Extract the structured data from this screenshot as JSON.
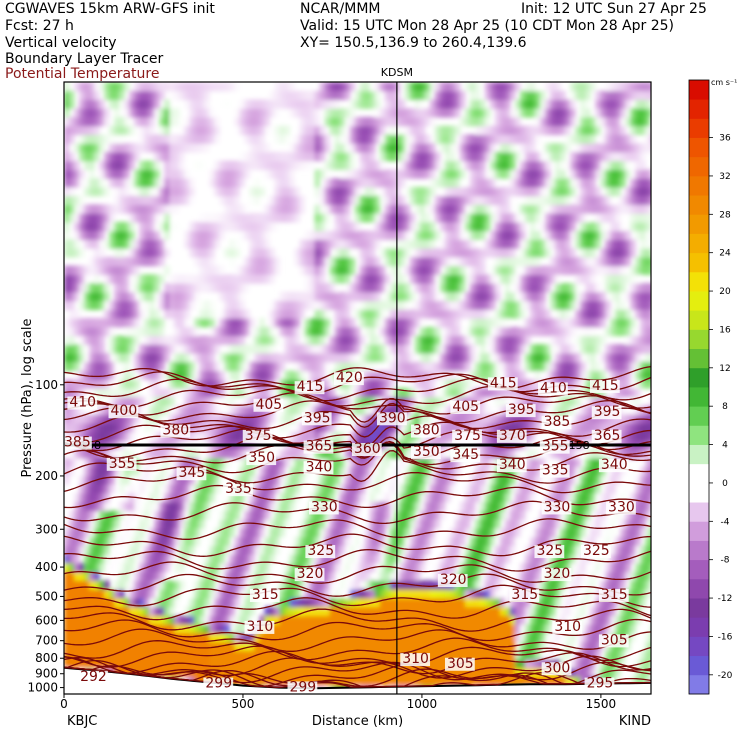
{
  "header": {
    "model": "CGWAVES 15km ARW-GFS init",
    "org": "NCAR/MMM",
    "init": "Init: 12 UTC Sun 27 Apr 25",
    "fcst": "Fcst:   27 h",
    "valid": "Valid: 15 UTC Mon 28 Apr 25 (10 CDT Mon 28 Apr 25)",
    "xy": "XY= 150.5,136.9 to 260.4,139.6",
    "fields": [
      "Vertical velocity",
      "Boundary Layer Tracer",
      "Potential Temperature"
    ]
  },
  "colors": {
    "theta": "#7a0a0a",
    "frame": "#000000"
  },
  "chart_data": {
    "type": "heatmap",
    "xlabel": "Distance (km)",
    "ylabel": "Pressure (hPa), log scale",
    "xlim": [
      0,
      1640
    ],
    "ylim": [
      1050,
      10
    ],
    "y_scale": "log",
    "x_ticks": [
      "0",
      "500",
      "1000",
      "1500"
    ],
    "y_ticks": [
      100,
      200,
      300,
      400,
      500,
      600,
      700,
      800,
      900,
      1000
    ],
    "station_left": "KBJC",
    "station_right": "KIND",
    "station_mid": "KDSM",
    "station_mid_x": 930,
    "tropopause_p": 158,
    "tropopause_labels": [
      "158",
      "158"
    ],
    "colorbar": {
      "units": "cm s⁻¹",
      "min": -22,
      "max": 42,
      "step": 2,
      "tick_labels": [
        "36",
        "32",
        "28",
        "24",
        "20",
        "16",
        "12",
        "8",
        "4",
        "0",
        "-4",
        "-8",
        "-12",
        "-16",
        "-20"
      ]
    },
    "theta_labels": [
      {
        "v": "410",
        "x": 15,
        "p": 118
      },
      {
        "v": "400",
        "x": 130,
        "p": 126
      },
      {
        "v": "380",
        "x": 275,
        "p": 146
      },
      {
        "v": "375",
        "x": 505,
        "p": 152
      },
      {
        "v": "405",
        "x": 535,
        "p": 120
      },
      {
        "v": "415",
        "x": 650,
        "p": 105
      },
      {
        "v": "420",
        "x": 760,
        "p": 98
      },
      {
        "v": "395",
        "x": 670,
        "p": 133
      },
      {
        "v": "390",
        "x": 880,
        "p": 133
      },
      {
        "v": "385",
        "x": 0,
        "p": 160
      },
      {
        "v": "355",
        "x": 125,
        "p": 188
      },
      {
        "v": "345",
        "x": 320,
        "p": 202
      },
      {
        "v": "350",
        "x": 515,
        "p": 180
      },
      {
        "v": "340",
        "x": 675,
        "p": 193
      },
      {
        "v": "365",
        "x": 675,
        "p": 165
      },
      {
        "v": "360",
        "x": 810,
        "p": 168
      },
      {
        "v": "335",
        "x": 450,
        "p": 228
      },
      {
        "v": "330",
        "x": 690,
        "p": 262
      },
      {
        "v": "325",
        "x": 680,
        "p": 365
      },
      {
        "v": "320",
        "x": 650,
        "p": 435
      },
      {
        "v": "315",
        "x": 525,
        "p": 510
      },
      {
        "v": "310",
        "x": 510,
        "p": 650
      },
      {
        "v": "292",
        "x": 45,
        "p": 950
      },
      {
        "v": "299",
        "x": 395,
        "p": 1000
      },
      {
        "v": "299",
        "x": 630,
        "p": 1030
      },
      {
        "v": "380",
        "x": 975,
        "p": 146
      },
      {
        "v": "375",
        "x": 1090,
        "p": 152
      },
      {
        "v": "350",
        "x": 975,
        "p": 172
      },
      {
        "v": "345",
        "x": 1085,
        "p": 176
      },
      {
        "v": "340",
        "x": 1215,
        "p": 190
      },
      {
        "v": "335",
        "x": 1335,
        "p": 198
      },
      {
        "v": "340",
        "x": 1500,
        "p": 190
      },
      {
        "v": "355",
        "x": 1335,
        "p": 165
      },
      {
        "v": "370",
        "x": 1215,
        "p": 152
      },
      {
        "v": "365",
        "x": 1480,
        "p": 152
      },
      {
        "v": "385",
        "x": 1340,
        "p": 137
      },
      {
        "v": "395",
        "x": 1240,
        "p": 125
      },
      {
        "v": "395",
        "x": 1480,
        "p": 127
      },
      {
        "v": "405",
        "x": 1085,
        "p": 122
      },
      {
        "v": "415",
        "x": 1190,
        "p": 102
      },
      {
        "v": "410",
        "x": 1330,
        "p": 106
      },
      {
        "v": "415",
        "x": 1475,
        "p": 104
      },
      {
        "v": "330",
        "x": 1340,
        "p": 262
      },
      {
        "v": "330",
        "x": 1520,
        "p": 262
      },
      {
        "v": "325",
        "x": 1320,
        "p": 365
      },
      {
        "v": "325",
        "x": 1450,
        "p": 365
      },
      {
        "v": "320",
        "x": 1050,
        "p": 455
      },
      {
        "v": "320",
        "x": 1340,
        "p": 435
      },
      {
        "v": "315",
        "x": 1250,
        "p": 510
      },
      {
        "v": "315",
        "x": 1500,
        "p": 510
      },
      {
        "v": "310",
        "x": 945,
        "p": 830
      },
      {
        "v": "310",
        "x": 1370,
        "p": 650
      },
      {
        "v": "305",
        "x": 1500,
        "p": 720
      },
      {
        "v": "305",
        "x": 1070,
        "p": 860
      },
      {
        "v": "300",
        "x": 1340,
        "p": 890
      },
      {
        "v": "295",
        "x": 1460,
        "p": 1000
      }
    ]
  }
}
